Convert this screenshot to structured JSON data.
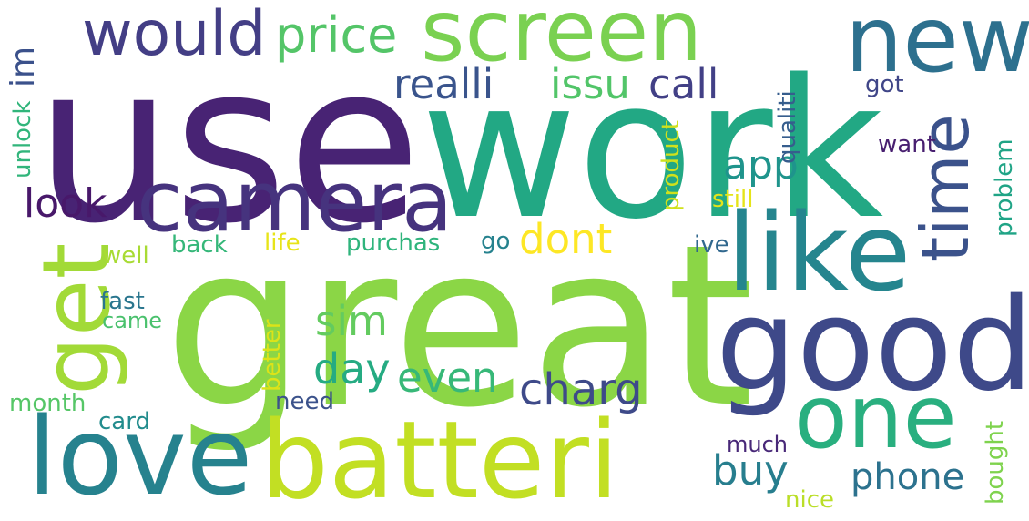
{
  "words": [
    {
      "text": "use",
      "color": "#482374"
    },
    {
      "text": "work",
      "color": "#22a884"
    },
    {
      "text": "great",
      "color": "#8bd646"
    },
    {
      "text": "screen",
      "color": "#7ad151"
    },
    {
      "text": "new",
      "color": "#2d708e"
    },
    {
      "text": "would",
      "color": "#433e85"
    },
    {
      "text": "price",
      "color": "#54c568"
    },
    {
      "text": "camera",
      "color": "#46337e"
    },
    {
      "text": "good",
      "color": "#3e4989"
    },
    {
      "text": "like",
      "color": "#25858e"
    },
    {
      "text": "time",
      "color": "#3b528b"
    },
    {
      "text": "one",
      "color": "#29af7f"
    },
    {
      "text": "love",
      "color": "#26828e"
    },
    {
      "text": "batteri",
      "color": "#c2df23"
    },
    {
      "text": "get",
      "color": "#a2da37"
    },
    {
      "text": "realli",
      "color": "#3a548c"
    },
    {
      "text": "issu",
      "color": "#52c569"
    },
    {
      "text": "call",
      "color": "#424086"
    },
    {
      "text": "app",
      "color": "#1f948c"
    },
    {
      "text": "look",
      "color": "#48186a"
    },
    {
      "text": "im",
      "color": "#3b518b"
    },
    {
      "text": "unlock",
      "color": "#31b57b"
    },
    {
      "text": "dont",
      "color": "#fde725"
    },
    {
      "text": "day",
      "color": "#25ab82"
    },
    {
      "text": "even",
      "color": "#37b878"
    },
    {
      "text": "sim",
      "color": "#63cb5f"
    },
    {
      "text": "charg",
      "color": "#3e4a89"
    },
    {
      "text": "buy",
      "color": "#277e8e"
    },
    {
      "text": "phone",
      "color": "#2c728e"
    },
    {
      "text": "back",
      "color": "#35b779"
    },
    {
      "text": "well",
      "color": "#a8db34"
    },
    {
      "text": "life",
      "color": "#e7e419"
    },
    {
      "text": "purchas",
      "color": "#2fb47c"
    },
    {
      "text": "go",
      "color": "#26828e"
    },
    {
      "text": "fast",
      "color": "#2a768e"
    },
    {
      "text": "came",
      "color": "#4ac16d"
    },
    {
      "text": "better",
      "color": "#dde318"
    },
    {
      "text": "need",
      "color": "#3b528b"
    },
    {
      "text": "month",
      "color": "#56c667"
    },
    {
      "text": "card",
      "color": "#228c8d"
    },
    {
      "text": "got",
      "color": "#404688"
    },
    {
      "text": "qualiti",
      "color": "#365d8d"
    },
    {
      "text": "want",
      "color": "#481f70"
    },
    {
      "text": "product",
      "color": "#d0e11c"
    },
    {
      "text": "still",
      "color": "#e5e419"
    },
    {
      "text": "ive",
      "color": "#31688e"
    },
    {
      "text": "problem",
      "color": "#20a486"
    },
    {
      "text": "much",
      "color": "#482878"
    },
    {
      "text": "nice",
      "color": "#bade28"
    },
    {
      "text": "bought",
      "color": "#7fd34e"
    }
  ]
}
